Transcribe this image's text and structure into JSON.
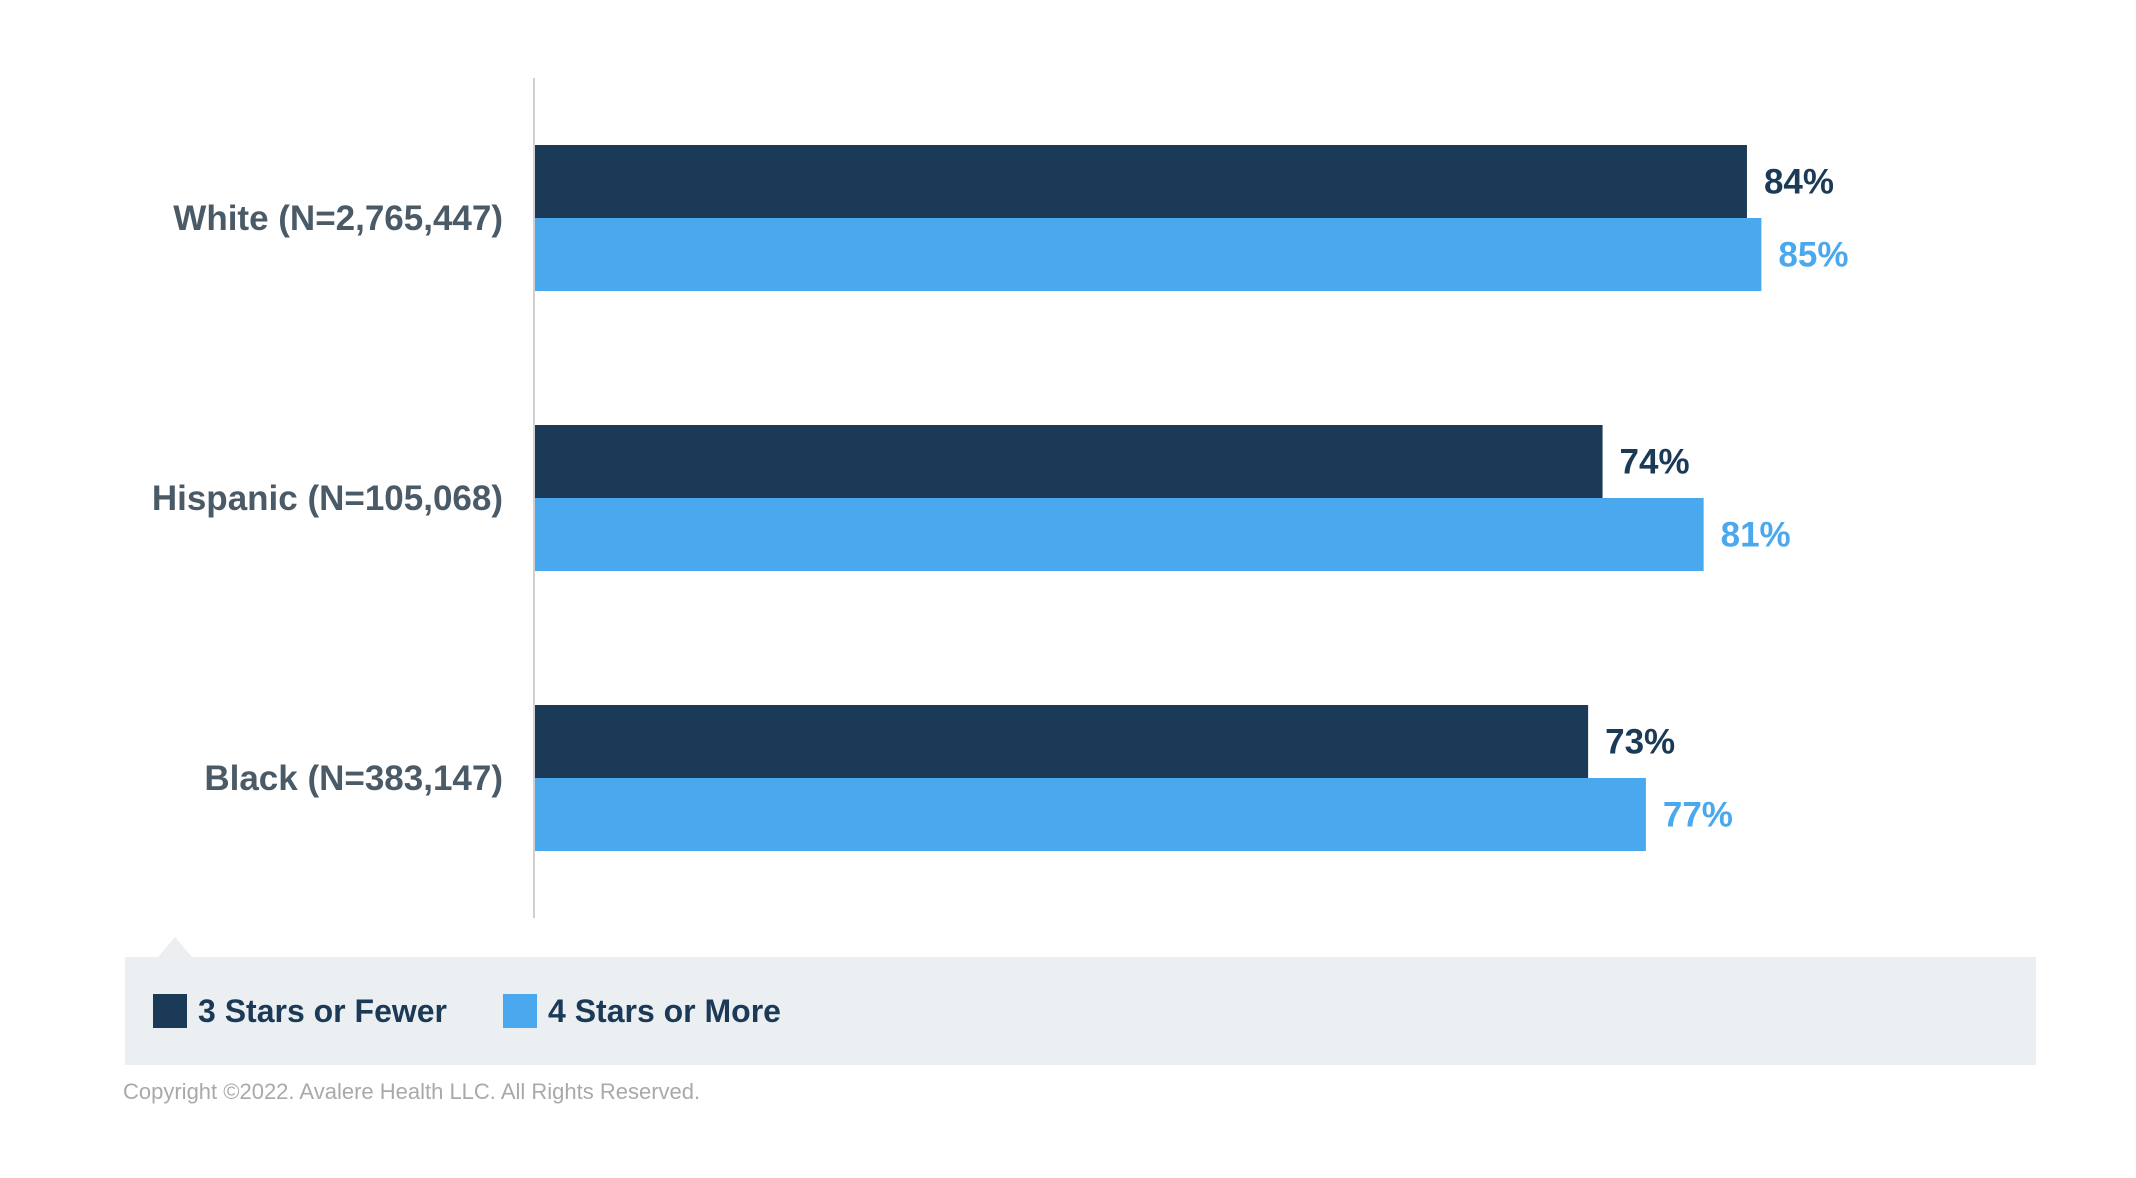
{
  "chart_data": {
    "type": "bar",
    "orientation": "horizontal",
    "categories": [
      "White (N=2,765,447)",
      "Hispanic (N=105,068)",
      "Black (N=383,147)"
    ],
    "series": [
      {
        "name": "3 Stars or Fewer",
        "color": "#1b3a57",
        "values": [
          84,
          74,
          73
        ],
        "labels": [
          "84%",
          "74%",
          "73%"
        ]
      },
      {
        "name": "4 Stars or More",
        "color": "#4aa8ee",
        "values": [
          85,
          81,
          77
        ],
        "labels": [
          "85%",
          "81%",
          "77%"
        ]
      }
    ],
    "xlim": [
      0,
      100
    ],
    "grid": false,
    "legend_position": "bottom"
  },
  "legend": {
    "items": [
      {
        "label": "3 Stars or Fewer",
        "color": "#1b3a57"
      },
      {
        "label": "4 Stars or More",
        "color": "#4aa8ee"
      }
    ]
  },
  "footer": {
    "copyright": "Copyright ©2022. Avalere Health LLC. All Rights Reserved."
  },
  "colors": {
    "category_label": "#4a5a66",
    "axis": "#d0d0d0",
    "legend_bg": "#eceff2",
    "copyright": "#a7a9ab"
  }
}
